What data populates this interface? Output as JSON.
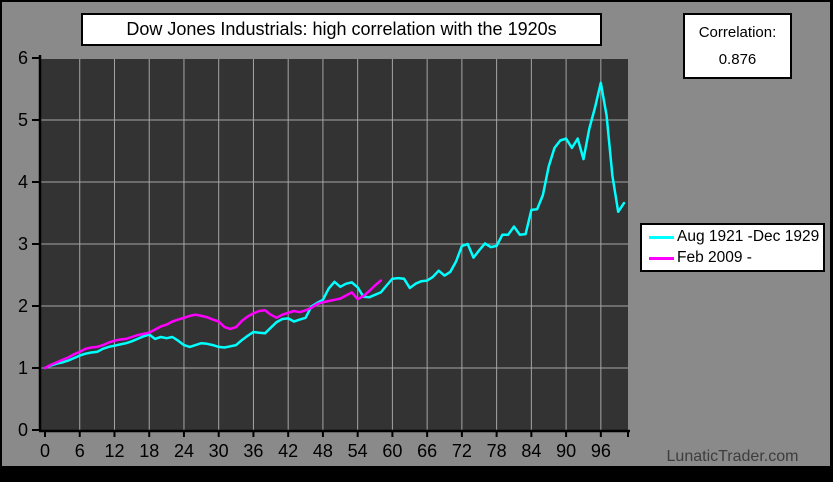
{
  "frame": {
    "bg": "#8a8a8a",
    "border_color": "#000000"
  },
  "title_box": {
    "text": "Dow Jones Industrials: high correlation with the 1920s"
  },
  "correlation_box": {
    "label": "Correlation:",
    "value": "0.876"
  },
  "watermark": {
    "text": "LunaticTrader.com"
  },
  "chart_data": {
    "type": "line",
    "title": "Dow Jones Industrials: high correlation with the 1920s",
    "xlabel": "",
    "ylabel": "",
    "xlim": [
      0,
      101
    ],
    "ylim": [
      0,
      6
    ],
    "x_ticks": [
      0,
      6,
      12,
      18,
      24,
      30,
      36,
      42,
      48,
      54,
      60,
      66,
      72,
      78,
      84,
      90,
      96
    ],
    "y_ticks": [
      0,
      1,
      2,
      3,
      4,
      5,
      6
    ],
    "grid": true,
    "plot_bg": "#333333",
    "grid_color": "#a5a5a5",
    "axis_color": "#000000",
    "legend_position": "right-outside",
    "annotation": {
      "label": "Correlation:",
      "value": "0.876"
    },
    "x_unit": "months from start",
    "series": [
      {
        "name": "Aug 1921 -Dec 1929",
        "color": "#00ffff",
        "x_start": 0,
        "x_step": 1,
        "values": [
          1.0,
          1.04,
          1.07,
          1.09,
          1.12,
          1.16,
          1.2,
          1.23,
          1.25,
          1.26,
          1.31,
          1.34,
          1.36,
          1.38,
          1.4,
          1.43,
          1.47,
          1.51,
          1.54,
          1.47,
          1.5,
          1.48,
          1.5,
          1.44,
          1.37,
          1.34,
          1.37,
          1.4,
          1.39,
          1.37,
          1.34,
          1.33,
          1.35,
          1.37,
          1.45,
          1.52,
          1.58,
          1.57,
          1.56,
          1.65,
          1.74,
          1.79,
          1.8,
          1.75,
          1.78,
          1.81,
          1.99,
          2.05,
          2.1,
          2.28,
          2.39,
          2.31,
          2.36,
          2.38,
          2.3,
          2.15,
          2.14,
          2.18,
          2.22,
          2.33,
          2.44,
          2.45,
          2.44,
          2.29,
          2.36,
          2.4,
          2.41,
          2.47,
          2.57,
          2.49,
          2.55,
          2.72,
          2.97,
          3.0,
          2.78,
          2.9,
          3.01,
          2.95,
          2.97,
          3.15,
          3.15,
          3.28,
          3.15,
          3.16,
          3.55,
          3.56,
          3.79,
          4.25,
          4.55,
          4.67,
          4.7,
          4.55,
          4.7,
          4.37,
          4.86,
          5.2,
          5.6,
          5.07,
          4.1,
          3.52,
          3.66
        ]
      },
      {
        "name": "Feb 2009 -",
        "color": "#ff00ff",
        "x_start": 0,
        "x_step": 1,
        "values": [
          1.0,
          1.05,
          1.09,
          1.13,
          1.17,
          1.22,
          1.26,
          1.31,
          1.33,
          1.34,
          1.37,
          1.41,
          1.44,
          1.46,
          1.47,
          1.5,
          1.53,
          1.55,
          1.57,
          1.62,
          1.67,
          1.7,
          1.75,
          1.78,
          1.81,
          1.84,
          1.86,
          1.84,
          1.82,
          1.78,
          1.75,
          1.66,
          1.63,
          1.66,
          1.76,
          1.83,
          1.88,
          1.92,
          1.93,
          1.86,
          1.81,
          1.86,
          1.89,
          1.92,
          1.9,
          1.93,
          1.97,
          2.03,
          2.06,
          2.08,
          2.1,
          2.12,
          2.17,
          2.22,
          2.11,
          2.16,
          2.24,
          2.33,
          2.41
        ]
      }
    ]
  }
}
